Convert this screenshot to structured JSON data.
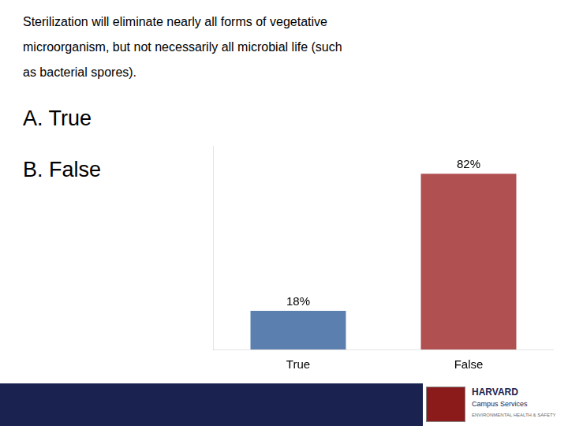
{
  "chart_data": {
    "type": "bar",
    "title": [
      "Sterilization will eliminate nearly all forms of vegetative",
      "microorganism, but not necessarily all microbial life (such",
      "as bacterial spores)."
    ],
    "categories": [
      "True",
      "False"
    ],
    "values": [
      18,
      82
    ],
    "value_labels": [
      "18%",
      "82%"
    ],
    "colors": [
      "#5b7faf",
      "#b05050"
    ],
    "ylim": [
      0,
      95
    ],
    "grid": false,
    "data_labels": true,
    "tick_labels": "x",
    "annotations": [
      "A. True",
      "B. False",
      "HARVARD",
      "Campus Services",
      "ENVIRONMENTAL HEALTH & SAFETY"
    ]
  }
}
